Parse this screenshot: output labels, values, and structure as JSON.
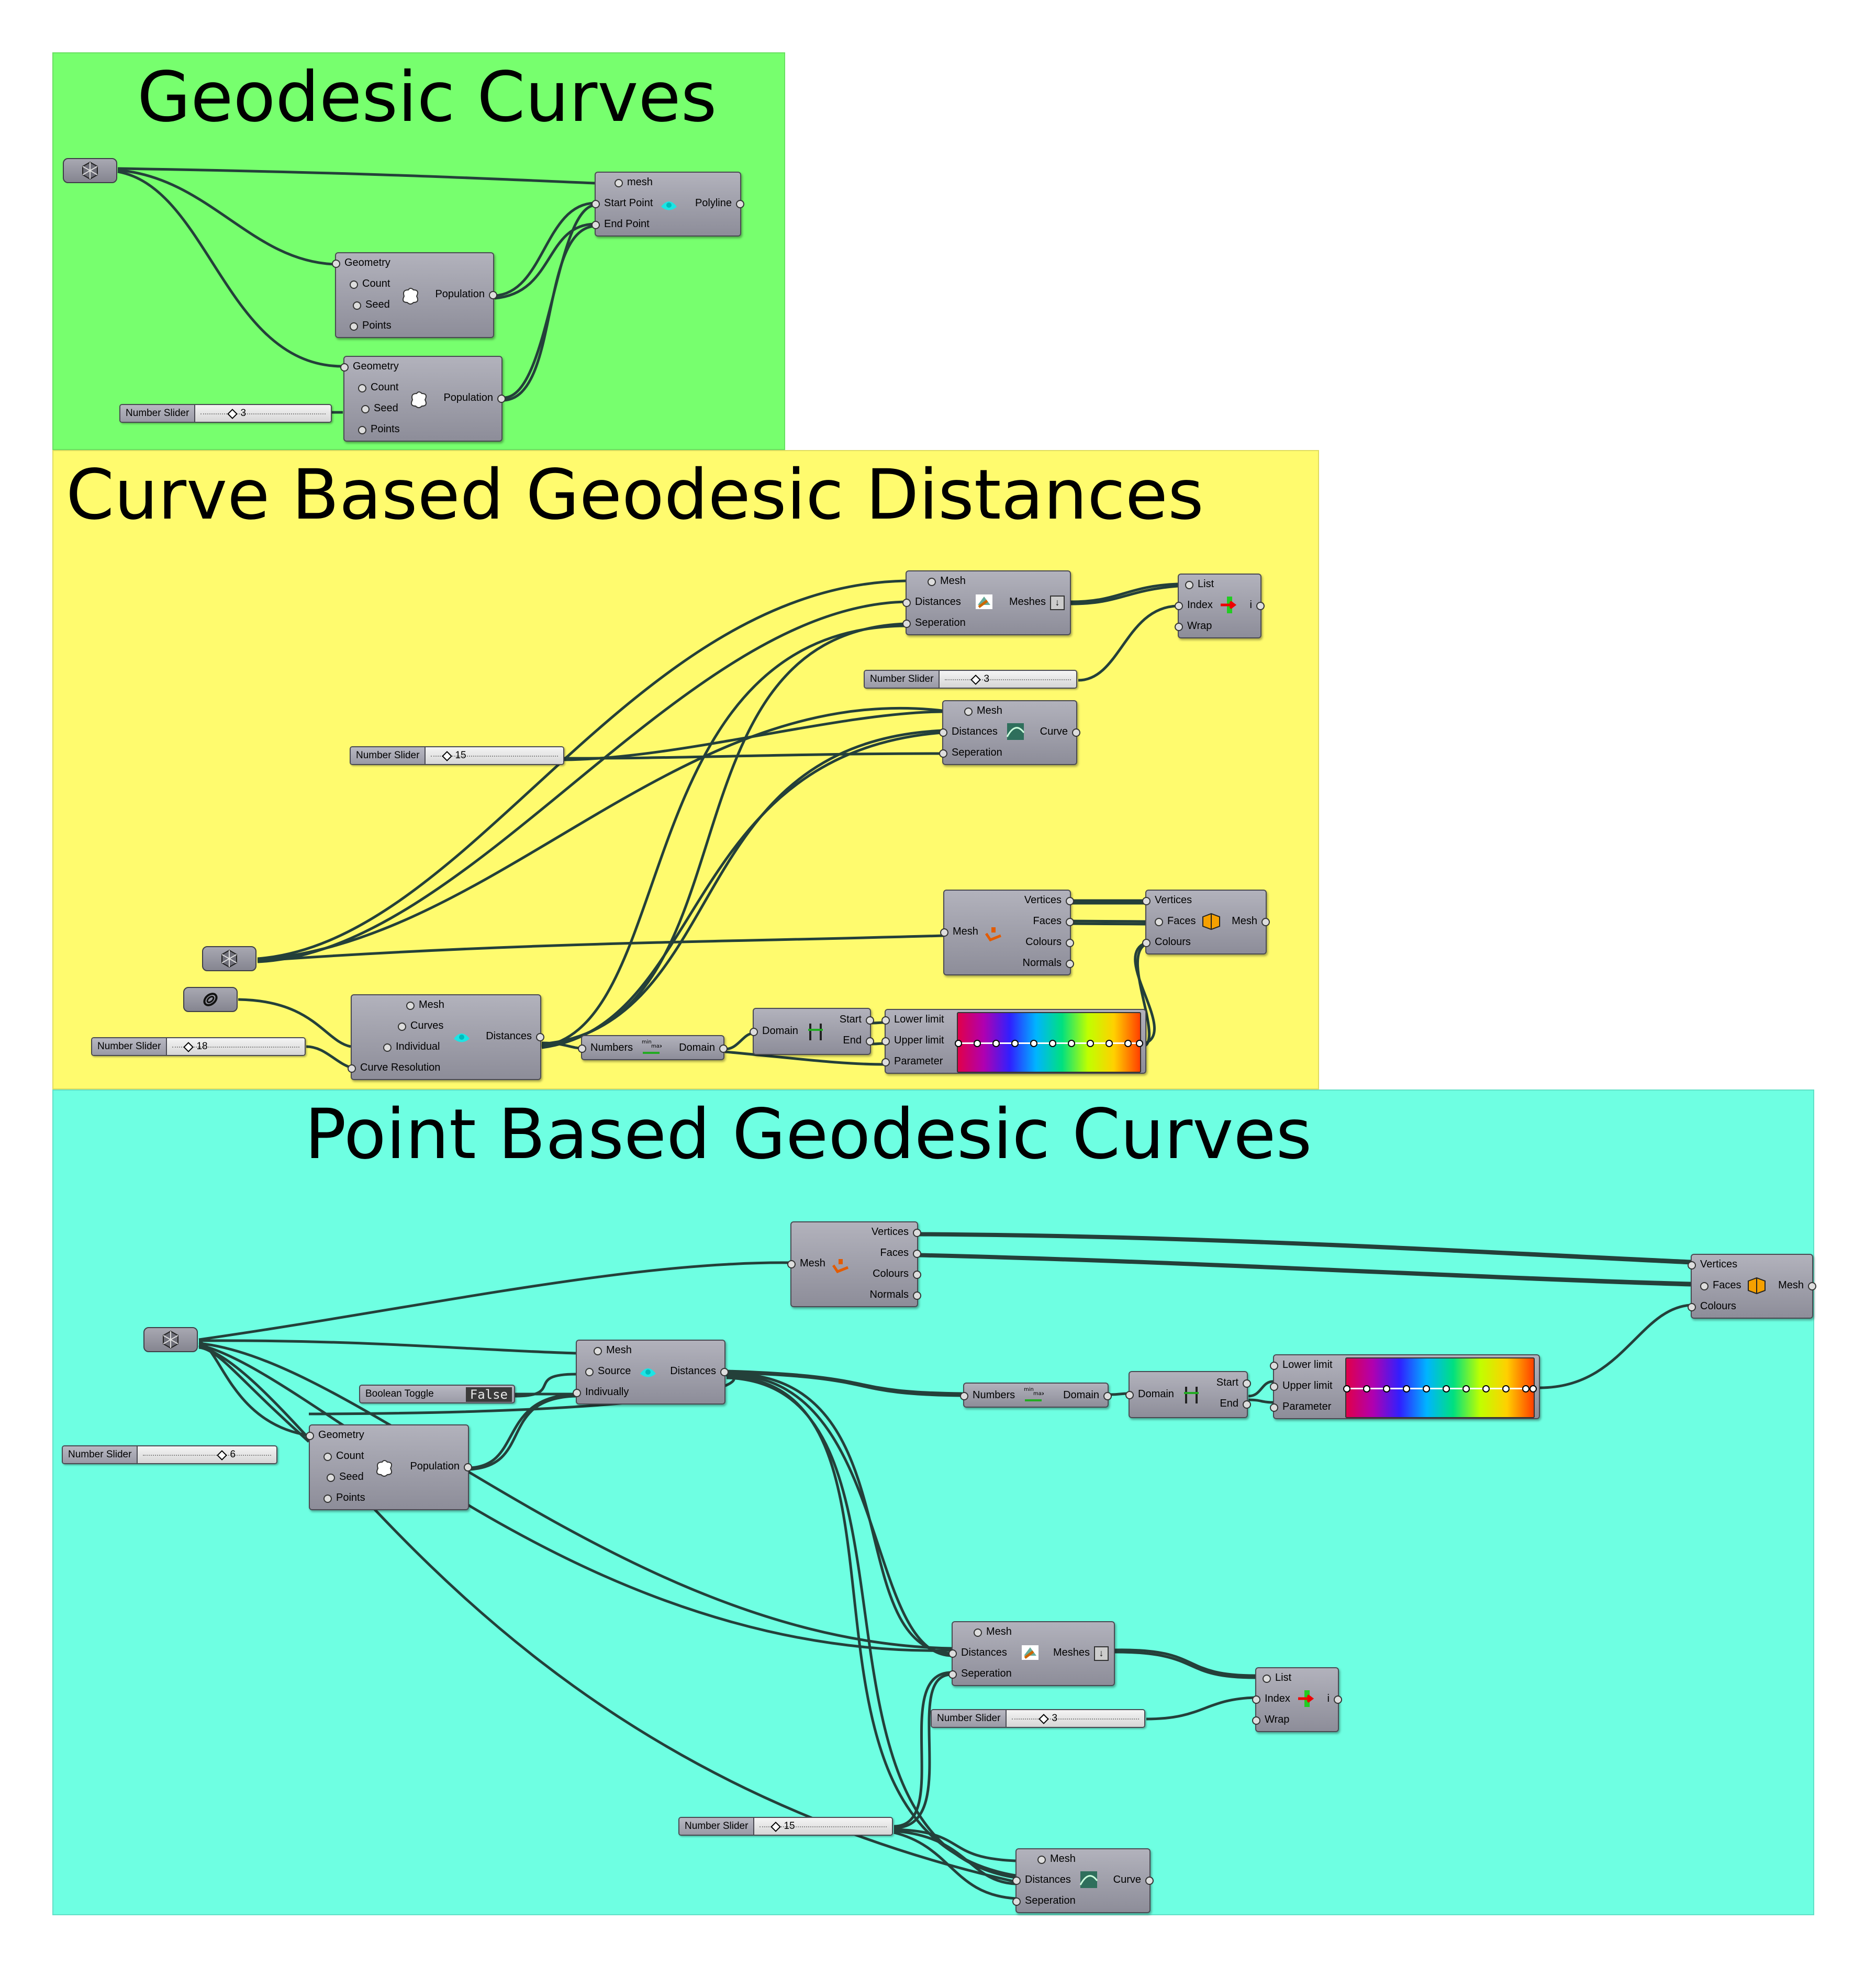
{
  "groups": [
    {
      "title": "Geodesic Curves",
      "color": "#77ff6e"
    },
    {
      "title": "Curve Based Geodesic Distances",
      "color": "#fffb6e"
    },
    {
      "title": "Point Based Geodesic Curves",
      "color": "#6effe2"
    }
  ],
  "labels": {
    "mesh_lower": "mesh",
    "mesh": "Mesh",
    "start_point": "Start Point",
    "end_point": "End Point",
    "polyline": "Polyline",
    "geometry": "Geometry",
    "count": "Count",
    "seed": "Seed",
    "points": "Points",
    "population": "Population",
    "number_slider": "Number Slider",
    "distances": "Distances",
    "seperation": "Seperation",
    "meshes": "Meshes",
    "list": "List",
    "index": "Index",
    "wrap": "Wrap",
    "item": "i",
    "curve": "Curve",
    "vertices": "Vertices",
    "faces": "Faces",
    "colours": "Colours",
    "normals": "Normals",
    "curves": "Curves",
    "individual": "Individual",
    "curve_resolution": "Curve Resolution",
    "numbers": "Numbers",
    "domain": "Domain",
    "start": "Start",
    "end": "End",
    "lower_limit": "Lower limit",
    "upper_limit": "Upper limit",
    "parameter": "Parameter",
    "source": "Source",
    "indivually": "Indivually",
    "boolean_toggle": "Boolean Toggle",
    "false": "False"
  },
  "sliders": {
    "g1_seed": "3",
    "g2_index": "3",
    "g2_separation": "15",
    "g2_resolution": "18",
    "g3_count": "6",
    "g3_index": "3",
    "g3_separation": "15"
  }
}
